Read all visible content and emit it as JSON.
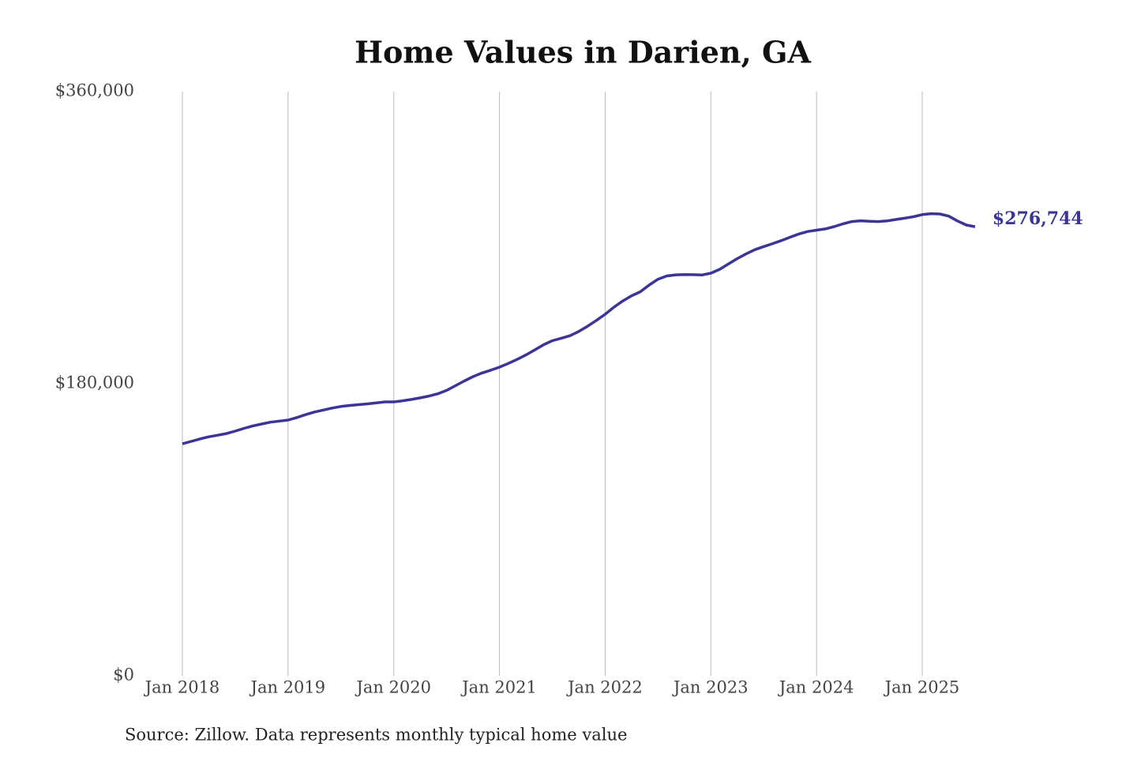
{
  "chart_data": {
    "type": "line",
    "title": "Home Values in Darien, GA",
    "source": "Source: Zillow. Data represents monthly typical home value",
    "x": [
      "2018-01",
      "2018-02",
      "2018-03",
      "2018-04",
      "2018-05",
      "2018-06",
      "2018-07",
      "2018-08",
      "2018-09",
      "2018-10",
      "2018-11",
      "2018-12",
      "2019-01",
      "2019-02",
      "2019-03",
      "2019-04",
      "2019-05",
      "2019-06",
      "2019-07",
      "2019-08",
      "2019-09",
      "2019-10",
      "2019-11",
      "2019-12",
      "2020-01",
      "2020-02",
      "2020-03",
      "2020-04",
      "2020-05",
      "2020-06",
      "2020-07",
      "2020-08",
      "2020-09",
      "2020-10",
      "2020-11",
      "2020-12",
      "2021-01",
      "2021-02",
      "2021-03",
      "2021-04",
      "2021-05",
      "2021-06",
      "2021-07",
      "2021-08",
      "2021-09",
      "2021-10",
      "2021-11",
      "2021-12",
      "2022-01",
      "2022-02",
      "2022-03",
      "2022-04",
      "2022-05",
      "2022-06",
      "2022-07",
      "2022-08",
      "2022-09",
      "2022-10",
      "2022-11",
      "2022-12",
      "2023-01",
      "2023-02",
      "2023-03",
      "2023-04",
      "2023-05",
      "2023-06",
      "2023-07",
      "2023-08",
      "2023-09",
      "2023-10",
      "2023-11",
      "2023-12",
      "2024-01",
      "2024-02",
      "2024-03",
      "2024-04",
      "2024-05",
      "2024-06",
      "2024-07",
      "2024-08",
      "2024-09",
      "2024-10",
      "2024-11",
      "2024-12",
      "2025-01",
      "2025-02",
      "2025-03",
      "2025-04",
      "2025-05",
      "2025-06",
      "2025-07"
    ],
    "series": [
      {
        "name": "Typical home value",
        "color": "#3a3597",
        "values": [
          143000,
          144500,
          146000,
          147300,
          148300,
          149300,
          150800,
          152500,
          154000,
          155200,
          156300,
          157000,
          157600,
          159200,
          161000,
          162600,
          163800,
          165000,
          166000,
          166600,
          167100,
          167600,
          168200,
          168800,
          168800,
          169500,
          170300,
          171300,
          172400,
          173800,
          175900,
          178800,
          181700,
          184400,
          186600,
          188300,
          190200,
          192500,
          195000,
          197700,
          200800,
          204000,
          206500,
          208000,
          209600,
          212200,
          215400,
          219000,
          222800,
          227200,
          231000,
          234200,
          236700,
          240800,
          244400,
          246400,
          247100,
          247300,
          247200,
          247000,
          248100,
          250500,
          253800,
          257100,
          260000,
          262600,
          264500,
          266300,
          268200,
          270300,
          272300,
          273800,
          274600,
          275400,
          276800,
          278500,
          279900,
          280400,
          280100,
          279900,
          280300,
          281200,
          282000,
          282900,
          284200,
          284800,
          284600,
          283300,
          280300,
          277800,
          276744
        ]
      }
    ],
    "annotations": [
      {
        "x": "2025-07",
        "value": 276744,
        "text": "$276,744"
      }
    ],
    "ylim": [
      0,
      360000
    ],
    "yticks": [
      {
        "value": 0,
        "label": "$0"
      },
      {
        "value": 180000,
        "label": "$180,000"
      },
      {
        "value": 360000,
        "label": "$360,000"
      }
    ],
    "xticks": [
      {
        "value": "2018-01",
        "label": "Jan 2018"
      },
      {
        "value": "2019-01",
        "label": "Jan 2019"
      },
      {
        "value": "2020-01",
        "label": "Jan 2020"
      },
      {
        "value": "2021-01",
        "label": "Jan 2021"
      },
      {
        "value": "2022-01",
        "label": "Jan 2022"
      },
      {
        "value": "2023-01",
        "label": "Jan 2023"
      },
      {
        "value": "2024-01",
        "label": "Jan 2024"
      },
      {
        "value": "2025-01",
        "label": "Jan 2025"
      }
    ],
    "grid": "x"
  }
}
